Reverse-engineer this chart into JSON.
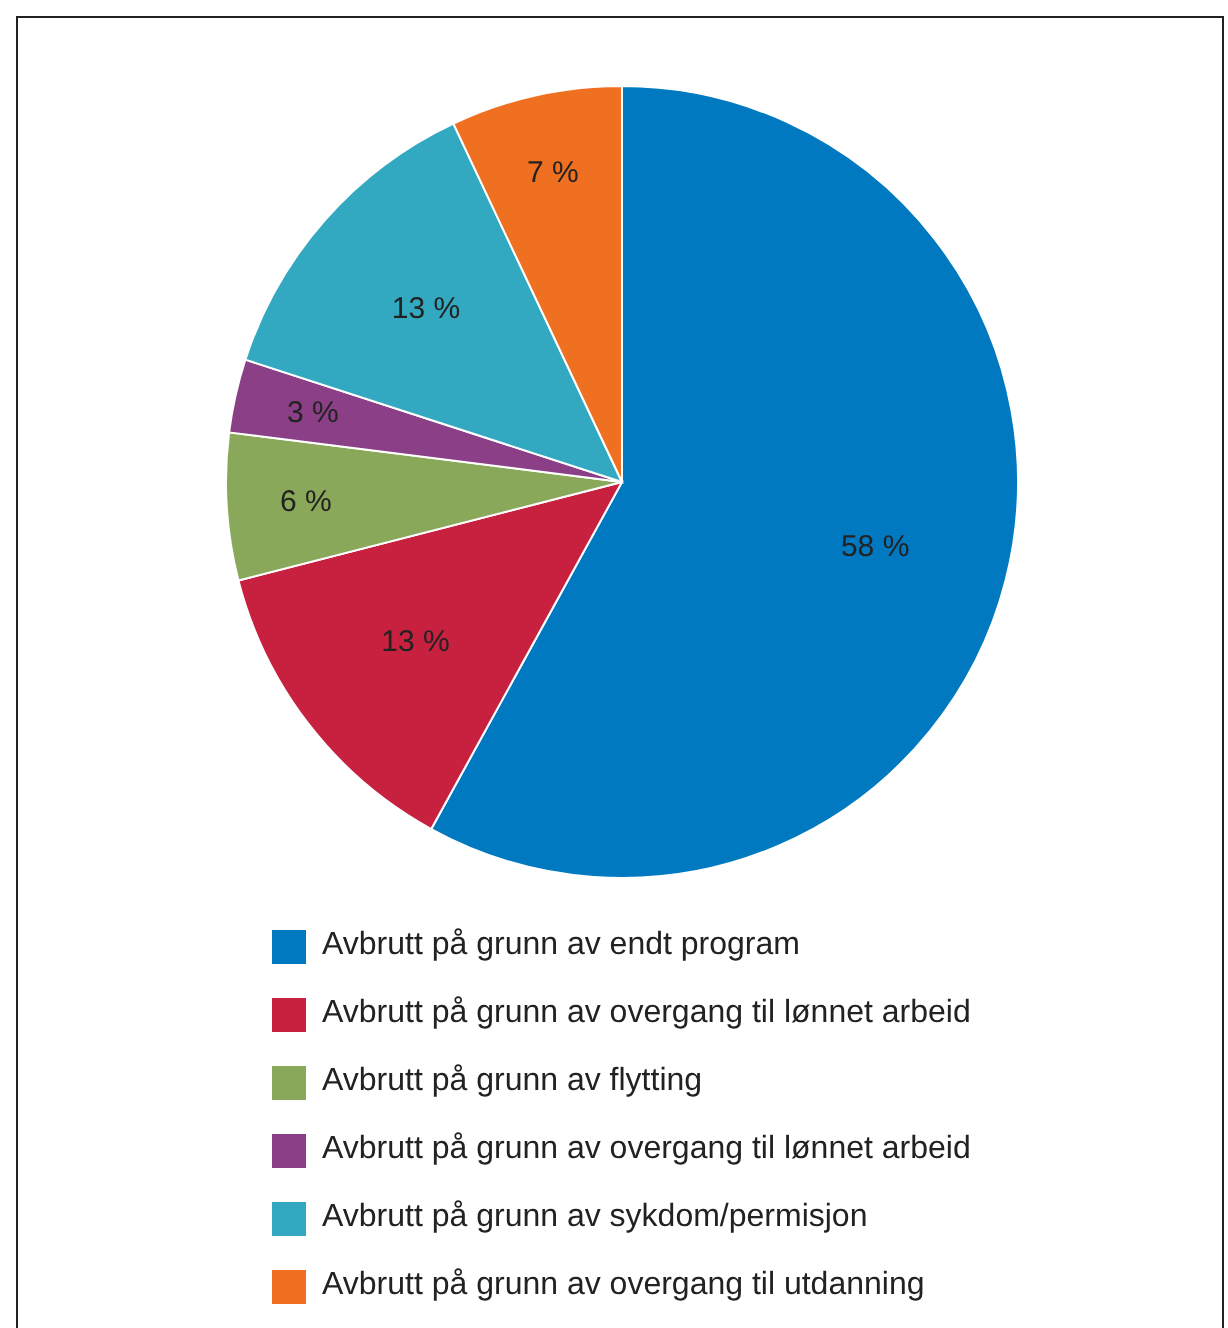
{
  "chart_data": {
    "type": "pie",
    "categories": [
      "Avbrutt på grunn av endt program",
      "Avbrutt på grunn av overgang til lønnet arbeid",
      "Avbrutt på grunn av flytting",
      "Avbrutt på grunn av overgang til lønnet arbeid",
      "Avbrutt på grunn av sykdom/permisjon",
      "Avbrutt på grunn av overgang til utdanning"
    ],
    "values": [
      58,
      13,
      6,
      3,
      13,
      7
    ],
    "colors": [
      "#0079c1",
      "#c8213f",
      "#8aa85a",
      "#8a3f86",
      "#33a9c1",
      "#f07022"
    ],
    "value_labels": [
      "58 %",
      "13 %",
      "6 %",
      "3 %",
      "13 %",
      "7 %"
    ],
    "legend": "bottom"
  }
}
